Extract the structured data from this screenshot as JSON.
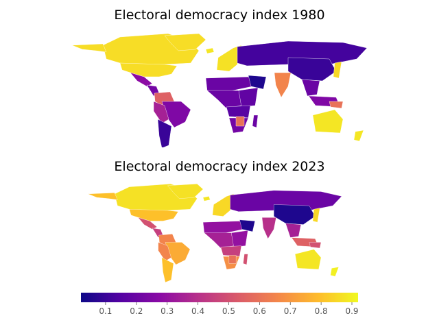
{
  "chart_data": [
    {
      "type": "choropleth",
      "title": "Electoral democracy index 1980",
      "regions": [
        {
          "name": "Canada",
          "value": 0.86
        },
        {
          "name": "USA",
          "value": 0.86
        },
        {
          "name": "Alaska",
          "value": 0.86
        },
        {
          "name": "Greenland",
          "value": 0.86
        },
        {
          "name": "Mexico",
          "value": 0.28
        },
        {
          "name": "Central America",
          "value": 0.22
        },
        {
          "name": "Colombia / Venezuela",
          "value": 0.55
        },
        {
          "name": "Brazil",
          "value": 0.25
        },
        {
          "name": "Peru / Bolivia",
          "value": 0.35
        },
        {
          "name": "Argentina / Chile",
          "value": 0.1
        },
        {
          "name": "Iceland",
          "value": 0.88
        },
        {
          "name": "Western Europe",
          "value": 0.87
        },
        {
          "name": "Eastern Europe / USSR",
          "value": 0.12
        },
        {
          "name": "North Africa",
          "value": 0.2
        },
        {
          "name": "Arabia",
          "value": 0.05
        },
        {
          "name": "West / Central Africa",
          "value": 0.2
        },
        {
          "name": "East Africa",
          "value": 0.18
        },
        {
          "name": "Southern Africa",
          "value": 0.16
        },
        {
          "name": "South Africa",
          "value": 0.22
        },
        {
          "name": "Botswana",
          "value": 0.6
        },
        {
          "name": "Madagascar",
          "value": 0.2
        },
        {
          "name": "India",
          "value": 0.65
        },
        {
          "name": "China",
          "value": 0.1
        },
        {
          "name": "Southeast Asia",
          "value": 0.2
        },
        {
          "name": "Japan",
          "value": 0.85
        },
        {
          "name": "Indonesia",
          "value": 0.25
        },
        {
          "name": "Papua New Guinea",
          "value": 0.6
        },
        {
          "name": "Australia",
          "value": 0.88
        },
        {
          "name": "New Zealand",
          "value": 0.88
        }
      ]
    },
    {
      "type": "choropleth",
      "title": "Electoral democracy index 2023",
      "regions": [
        {
          "name": "Canada",
          "value": 0.87
        },
        {
          "name": "USA",
          "value": 0.8
        },
        {
          "name": "Alaska",
          "value": 0.8
        },
        {
          "name": "Greenland",
          "value": 0.87
        },
        {
          "name": "Mexico",
          "value": 0.5
        },
        {
          "name": "Central America",
          "value": 0.45
        },
        {
          "name": "Colombia / Venezuela",
          "value": 0.65
        },
        {
          "name": "Brazil",
          "value": 0.75
        },
        {
          "name": "Peru / Bolivia",
          "value": 0.65
        },
        {
          "name": "Argentina / Chile",
          "value": 0.8
        },
        {
          "name": "Iceland",
          "value": 0.88
        },
        {
          "name": "Western Europe",
          "value": 0.85
        },
        {
          "name": "Eastern Europe / USSR",
          "value": 0.2
        },
        {
          "name": "North Africa",
          "value": 0.3
        },
        {
          "name": "Arabia",
          "value": 0.05
        },
        {
          "name": "West / Central Africa",
          "value": 0.35
        },
        {
          "name": "East Africa",
          "value": 0.3
        },
        {
          "name": "Southern Africa",
          "value": 0.45
        },
        {
          "name": "South Africa",
          "value": 0.68
        },
        {
          "name": "Botswana",
          "value": 0.6
        },
        {
          "name": "Madagascar",
          "value": 0.5
        },
        {
          "name": "India",
          "value": 0.4
        },
        {
          "name": "China",
          "value": 0.05
        },
        {
          "name": "Southeast Asia",
          "value": 0.35
        },
        {
          "name": "Japan",
          "value": 0.85
        },
        {
          "name": "Indonesia",
          "value": 0.55
        },
        {
          "name": "Papua New Guinea",
          "value": 0.5
        },
        {
          "name": "Australia",
          "value": 0.88
        },
        {
          "name": "New Zealand",
          "value": 0.9
        }
      ]
    }
  ],
  "colorbar": {
    "colormap": "plasma",
    "range": [
      0.02,
      0.92
    ],
    "ticks": [
      0.1,
      0.2,
      0.3,
      0.4,
      0.5,
      0.6,
      0.7,
      0.8,
      0.9
    ],
    "tick_labels": [
      "0.1",
      "0.2",
      "0.3",
      "0.4",
      "0.5",
      "0.6",
      "0.7",
      "0.8",
      "0.9"
    ]
  }
}
